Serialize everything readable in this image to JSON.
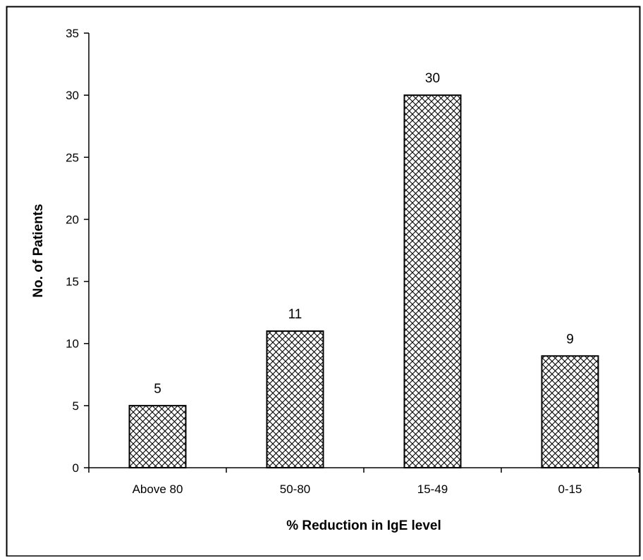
{
  "chart_data": {
    "type": "bar",
    "categories": [
      "Above 80",
      "50-80",
      "15-49",
      "0-15"
    ],
    "values": [
      5,
      11,
      30,
      9
    ],
    "data_labels": [
      "5",
      "11",
      "30",
      "9"
    ],
    "title": "",
    "xlabel": "% Reduction in IgE level",
    "ylabel": "No. of Patients",
    "ylim": [
      0,
      35
    ],
    "yticks": [
      0,
      5,
      10,
      15,
      20,
      25,
      30,
      35
    ],
    "ytick_labels": [
      "0",
      "5",
      "10",
      "15",
      "20",
      "25",
      "30",
      "35"
    ],
    "grid": false,
    "legend": "none",
    "bar_fill": "crosshatch",
    "colors": {
      "bar_stroke": "#000000",
      "hatch": "#000000",
      "background": "#ffffff",
      "frame": "#000000"
    }
  }
}
